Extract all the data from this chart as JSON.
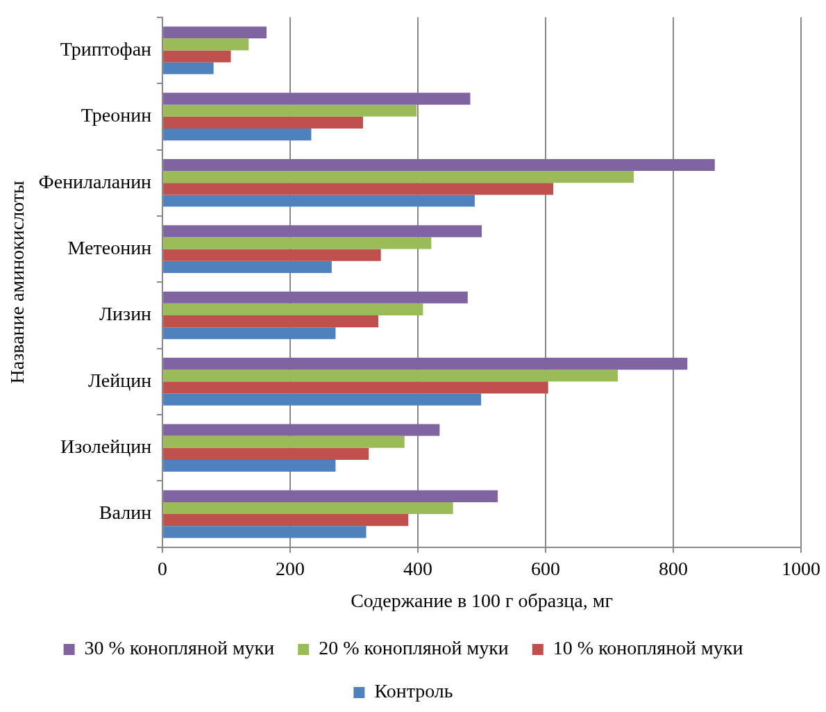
{
  "chart_data": {
    "type": "bar",
    "orientation": "horizontal",
    "xlabel": "Содержание в 100 г образца, мг",
    "ylabel": "Название аминокислоты",
    "categories": [
      "Триптофан",
      "Треонин",
      "Фенилаланин",
      "Метеонин",
      "Лизин",
      "Лейцин",
      "Изолейцин",
      "Валин"
    ],
    "series": [
      {
        "name": "30 % конопляной муки",
        "color": "#8064a2",
        "values": [
          163,
          482,
          865,
          500,
          478,
          822,
          434,
          525
        ]
      },
      {
        "name": "20 % конопляной муки",
        "color": "#9bbb59",
        "values": [
          135,
          398,
          738,
          421,
          408,
          713,
          379,
          455
        ]
      },
      {
        "name": "10 % конопляной муки",
        "color": "#c0504d",
        "values": [
          107,
          314,
          612,
          342,
          338,
          604,
          323,
          385
        ]
      },
      {
        "name": "Контроль",
        "color": "#4f81bd",
        "values": [
          80,
          233,
          489,
          265,
          271,
          499,
          271,
          319
        ]
      }
    ],
    "xlim": [
      0,
      1000
    ],
    "xticks": [
      0,
      200,
      400,
      600,
      800,
      1000
    ],
    "grid": "x",
    "legend": "bottom"
  }
}
